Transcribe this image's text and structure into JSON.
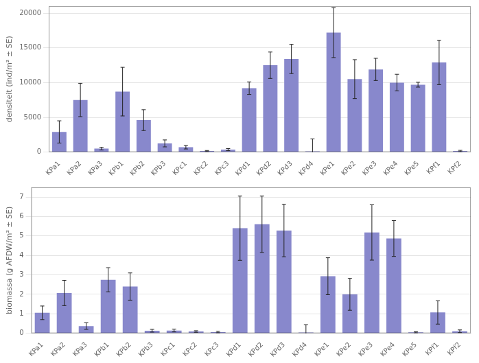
{
  "chart_data": [
    {
      "type": "bar",
      "categories": [
        "KPa1",
        "KPa2",
        "KPa3",
        "KPb1",
        "KPb2",
        "KPb3",
        "KPc1",
        "KPc2",
        "KPc3",
        "KPd1",
        "KPd2",
        "KPd3",
        "KPd4",
        "KPe1",
        "KPe2",
        "KPe3",
        "KPe4",
        "KPe5",
        "KPf1",
        "KPf2"
      ],
      "values": [
        2900,
        7500,
        500,
        8700,
        4600,
        1250,
        700,
        150,
        350,
        9200,
        12500,
        13400,
        100,
        17200,
        10500,
        11900,
        10000,
        9700,
        12900,
        150
      ],
      "errors": [
        1600,
        2400,
        200,
        3500,
        1500,
        500,
        250,
        80,
        150,
        900,
        1900,
        2100,
        1800,
        3600,
        2800,
        1600,
        1200,
        350,
        3200,
        100
      ],
      "color": "#8888cc",
      "ylabel": "densiteit (ind/m² ± SE)",
      "ylim": [
        0,
        21000
      ],
      "yticks": [
        0,
        5000,
        10000,
        15000,
        20000
      ],
      "grid": true
    },
    {
      "type": "bar",
      "categories": [
        "KPa1",
        "KPa2",
        "KPa3",
        "KPb1",
        "KPb2",
        "KPb3",
        "KPc1",
        "KPc2",
        "KPc3",
        "KPd1",
        "KPd2",
        "KPd3",
        "KPd4",
        "KPe1",
        "KPe2",
        "KPe3",
        "KPe4",
        "KPe5",
        "KPf1",
        "KPf2"
      ],
      "values": [
        1.05,
        2.07,
        0.37,
        2.75,
        2.4,
        0.13,
        0.14,
        0.09,
        0.06,
        5.4,
        5.6,
        5.28,
        0.04,
        2.93,
        2.0,
        5.18,
        4.87,
        0.05,
        1.07,
        0.1
      ],
      "errors": [
        0.35,
        0.65,
        0.17,
        0.62,
        0.7,
        0.07,
        0.07,
        0.04,
        0.04,
        1.65,
        1.45,
        1.35,
        0.4,
        0.95,
        0.82,
        1.42,
        0.92,
        0.03,
        0.6,
        0.07
      ],
      "color": "#8888cc",
      "ylabel": "biomassa (g AFDW/m² ± SE)",
      "ylim": [
        0,
        7.5
      ],
      "yticks": [
        0,
        1,
        2,
        3,
        4,
        5,
        6,
        7
      ],
      "grid": true
    }
  ]
}
